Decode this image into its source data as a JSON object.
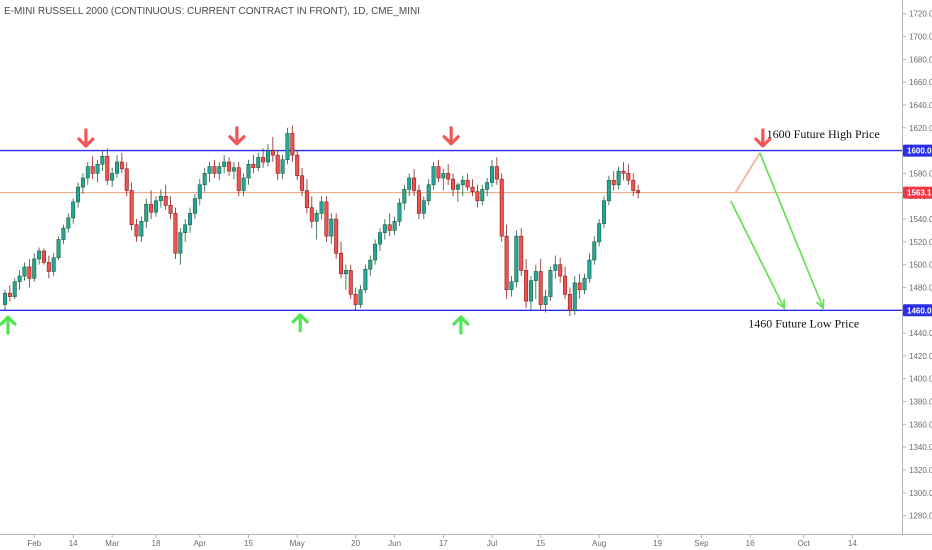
{
  "chart_data": {
    "type": "candlestick",
    "title": "E-MINI RUSSELL 2000 (CONTINUOUS: CURRENT CONTRACT IN FRONT), 1D, CME_MINI",
    "ylim": [
      1270,
      1725
    ],
    "y_ticks": [
      1280,
      1300,
      1320,
      1340,
      1360,
      1380,
      1400,
      1420,
      1440,
      1460,
      1480,
      1500,
      1520,
      1540,
      1560,
      1580,
      1600,
      1620,
      1640,
      1660,
      1680,
      1700,
      1720
    ],
    "x_ticks": [
      {
        "label": "Feb",
        "i": 6
      },
      {
        "label": "14",
        "i": 14
      },
      {
        "label": "Mar",
        "i": 22
      },
      {
        "label": "18",
        "i": 31
      },
      {
        "label": "Apr",
        "i": 40
      },
      {
        "label": "15",
        "i": 50
      },
      {
        "label": "May",
        "i": 60
      },
      {
        "label": "20",
        "i": 72
      },
      {
        "label": "Jun",
        "i": 80
      },
      {
        "label": "17",
        "i": 90
      },
      {
        "label": "Jul",
        "i": 100
      },
      {
        "label": "15",
        "i": 110
      },
      {
        "label": "Aug",
        "i": 122
      },
      {
        "label": "19",
        "i": 134
      },
      {
        "label": "Sep",
        "i": 143
      },
      {
        "label": "16",
        "i": 153
      },
      {
        "label": "Oct",
        "i": 164
      },
      {
        "label": "14",
        "i": 174
      }
    ],
    "candles": [
      [
        1465,
        1478,
        1460,
        1475
      ],
      [
        1475,
        1482,
        1468,
        1472
      ],
      [
        1472,
        1488,
        1470,
        1485
      ],
      [
        1485,
        1495,
        1478,
        1490
      ],
      [
        1490,
        1502,
        1486,
        1498
      ],
      [
        1498,
        1505,
        1480,
        1488
      ],
      [
        1488,
        1510,
        1485,
        1505
      ],
      [
        1505,
        1515,
        1500,
        1512
      ],
      [
        1512,
        1514,
        1500,
        1502
      ],
      [
        1502,
        1508,
        1488,
        1494
      ],
      [
        1494,
        1510,
        1490,
        1506
      ],
      [
        1506,
        1525,
        1504,
        1522
      ],
      [
        1522,
        1535,
        1518,
        1532
      ],
      [
        1532,
        1545,
        1528,
        1541
      ],
      [
        1541,
        1558,
        1536,
        1555
      ],
      [
        1555,
        1572,
        1550,
        1568
      ],
      [
        1568,
        1580,
        1562,
        1576
      ],
      [
        1576,
        1590,
        1570,
        1586
      ],
      [
        1586,
        1595,
        1575,
        1580
      ],
      [
        1580,
        1592,
        1572,
        1588
      ],
      [
        1588,
        1600,
        1582,
        1595
      ],
      [
        1595,
        1602,
        1570,
        1574
      ],
      [
        1574,
        1585,
        1568,
        1580
      ],
      [
        1580,
        1596,
        1576,
        1590
      ],
      [
        1590,
        1598,
        1580,
        1584
      ],
      [
        1584,
        1590,
        1560,
        1565
      ],
      [
        1565,
        1572,
        1530,
        1535
      ],
      [
        1535,
        1540,
        1520,
        1525
      ],
      [
        1525,
        1542,
        1520,
        1538
      ],
      [
        1538,
        1558,
        1532,
        1553
      ],
      [
        1553,
        1565,
        1540,
        1546
      ],
      [
        1546,
        1560,
        1542,
        1556
      ],
      [
        1556,
        1566,
        1550,
        1560
      ],
      [
        1560,
        1570,
        1548,
        1552
      ],
      [
        1552,
        1560,
        1540,
        1545
      ],
      [
        1545,
        1550,
        1505,
        1510
      ],
      [
        1510,
        1532,
        1500,
        1528
      ],
      [
        1528,
        1540,
        1520,
        1535
      ],
      [
        1535,
        1550,
        1528,
        1545
      ],
      [
        1545,
        1562,
        1540,
        1558
      ],
      [
        1558,
        1575,
        1552,
        1570
      ],
      [
        1570,
        1585,
        1564,
        1580
      ],
      [
        1580,
        1590,
        1572,
        1586
      ],
      [
        1586,
        1592,
        1576,
        1580
      ],
      [
        1580,
        1590,
        1574,
        1586
      ],
      [
        1586,
        1596,
        1580,
        1590
      ],
      [
        1590,
        1594,
        1578,
        1582
      ],
      [
        1582,
        1590,
        1575,
        1585
      ],
      [
        1585,
        1590,
        1560,
        1565
      ],
      [
        1565,
        1580,
        1560,
        1576
      ],
      [
        1576,
        1592,
        1570,
        1588
      ],
      [
        1588,
        1596,
        1580,
        1585
      ],
      [
        1585,
        1598,
        1582,
        1594
      ],
      [
        1594,
        1602,
        1585,
        1590
      ],
      [
        1590,
        1606,
        1586,
        1600
      ],
      [
        1600,
        1612,
        1590,
        1596
      ],
      [
        1596,
        1600,
        1574,
        1580
      ],
      [
        1580,
        1596,
        1575,
        1592
      ],
      [
        1592,
        1620,
        1588,
        1615
      ],
      [
        1615,
        1622,
        1590,
        1596
      ],
      [
        1596,
        1600,
        1574,
        1578
      ],
      [
        1578,
        1585,
        1560,
        1565
      ],
      [
        1565,
        1575,
        1545,
        1550
      ],
      [
        1550,
        1560,
        1532,
        1538
      ],
      [
        1538,
        1548,
        1522,
        1545
      ],
      [
        1545,
        1560,
        1540,
        1555
      ],
      [
        1555,
        1560,
        1520,
        1525
      ],
      [
        1525,
        1545,
        1518,
        1540
      ],
      [
        1540,
        1545,
        1505,
        1510
      ],
      [
        1510,
        1520,
        1488,
        1492
      ],
      [
        1492,
        1500,
        1478,
        1495
      ],
      [
        1495,
        1500,
        1470,
        1474
      ],
      [
        1474,
        1480,
        1460,
        1465
      ],
      [
        1465,
        1482,
        1462,
        1478
      ],
      [
        1478,
        1500,
        1475,
        1496
      ],
      [
        1496,
        1508,
        1490,
        1504
      ],
      [
        1504,
        1522,
        1500,
        1518
      ],
      [
        1518,
        1532,
        1512,
        1528
      ],
      [
        1528,
        1540,
        1522,
        1535
      ],
      [
        1535,
        1545,
        1525,
        1530
      ],
      [
        1530,
        1542,
        1526,
        1538
      ],
      [
        1538,
        1558,
        1534,
        1554
      ],
      [
        1554,
        1570,
        1548,
        1566
      ],
      [
        1566,
        1580,
        1560,
        1576
      ],
      [
        1576,
        1584,
        1560,
        1565
      ],
      [
        1565,
        1570,
        1540,
        1545
      ],
      [
        1545,
        1560,
        1540,
        1556
      ],
      [
        1556,
        1575,
        1552,
        1570
      ],
      [
        1570,
        1590,
        1566,
        1586
      ],
      [
        1586,
        1592,
        1572,
        1576
      ],
      [
        1576,
        1584,
        1565,
        1580
      ],
      [
        1580,
        1588,
        1570,
        1575
      ],
      [
        1575,
        1580,
        1560,
        1566
      ],
      [
        1566,
        1572,
        1555,
        1570
      ],
      [
        1570,
        1578,
        1560,
        1574
      ],
      [
        1574,
        1580,
        1565,
        1568
      ],
      [
        1568,
        1575,
        1560,
        1564
      ],
      [
        1564,
        1570,
        1550,
        1556
      ],
      [
        1556,
        1570,
        1552,
        1566
      ],
      [
        1566,
        1576,
        1560,
        1572
      ],
      [
        1572,
        1592,
        1568,
        1586
      ],
      [
        1586,
        1594,
        1570,
        1575
      ],
      [
        1575,
        1580,
        1520,
        1525
      ],
      [
        1525,
        1535,
        1470,
        1478
      ],
      [
        1478,
        1490,
        1472,
        1485
      ],
      [
        1485,
        1530,
        1480,
        1525
      ],
      [
        1525,
        1532,
        1490,
        1495
      ],
      [
        1495,
        1505,
        1462,
        1468
      ],
      [
        1468,
        1490,
        1460,
        1486
      ],
      [
        1486,
        1500,
        1470,
        1494
      ],
      [
        1494,
        1505,
        1460,
        1465
      ],
      [
        1465,
        1478,
        1458,
        1472
      ],
      [
        1472,
        1498,
        1468,
        1495
      ],
      [
        1495,
        1508,
        1488,
        1500
      ],
      [
        1500,
        1506,
        1484,
        1490
      ],
      [
        1490,
        1498,
        1470,
        1474
      ],
      [
        1474,
        1480,
        1455,
        1460
      ],
      [
        1460,
        1490,
        1456,
        1484
      ],
      [
        1484,
        1492,
        1470,
        1478
      ],
      [
        1478,
        1492,
        1474,
        1488
      ],
      [
        1488,
        1510,
        1484,
        1504
      ],
      [
        1504,
        1525,
        1500,
        1520
      ],
      [
        1520,
        1540,
        1516,
        1536
      ],
      [
        1536,
        1560,
        1532,
        1556
      ],
      [
        1556,
        1578,
        1552,
        1574
      ],
      [
        1574,
        1582,
        1565,
        1570
      ],
      [
        1570,
        1586,
        1566,
        1582
      ],
      [
        1582,
        1590,
        1574,
        1580
      ],
      [
        1580,
        1588,
        1570,
        1574
      ],
      [
        1574,
        1580,
        1560,
        1565
      ],
      [
        1565,
        1570,
        1558,
        1563
      ]
    ],
    "levels": [
      {
        "value": 1600,
        "label": "1600.0",
        "color": "#2a2ee6"
      },
      {
        "value": 1460,
        "label": "1460.0",
        "color": "#2a2ee6"
      }
    ],
    "last_price": {
      "value": 1563.1,
      "label": "1563.1",
      "color": "#f23645"
    },
    "annotations": [
      {
        "text": "1600 Future High Price",
        "x_i": 168,
        "y": 1611
      },
      {
        "text": "1460 Future Low Price",
        "x_i": 164,
        "y": 1445
      }
    ],
    "arrows_down": [
      {
        "x_i": 16,
        "y": 1604
      },
      {
        "x_i": 47,
        "y": 1606
      },
      {
        "x_i": 91,
        "y": 1606
      },
      {
        "x_i": 155,
        "y": 1604
      }
    ],
    "arrows_up": [
      {
        "x_i": 0,
        "y": 1454
      },
      {
        "x_i": 60,
        "y": 1456
      },
      {
        "x_i": 93,
        "y": 1454
      }
    ],
    "projection": {
      "up_leg": {
        "from": [
          150,
          1563
        ],
        "to": [
          155,
          1598
        ]
      },
      "green_legs": [
        {
          "from": [
            149,
            1556
          ],
          "to": [
            160,
            1462
          ]
        },
        {
          "from": [
            155,
            1598
          ],
          "to": [
            168,
            1462
          ]
        }
      ]
    },
    "colors": {
      "up": "#26a69a",
      "up_border": "#1f5f3c",
      "down": "#ef5350",
      "down_border": "#8b1f1f",
      "level": "#2a2ee6",
      "price_line": "#e8a27a",
      "arrow_down": "#f05656",
      "arrow_up": "#50e650",
      "projection_up": "#f3b8a0",
      "projection_green": "#5fe04a"
    }
  }
}
